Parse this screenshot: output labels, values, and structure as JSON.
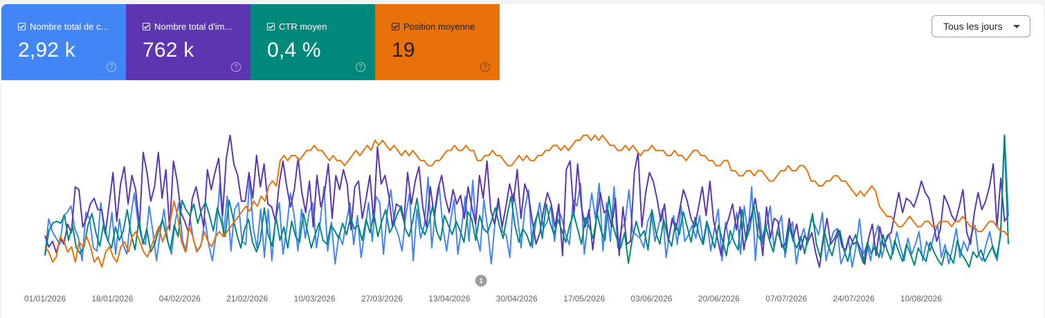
{
  "metrics": [
    {
      "label": "Nombre total de c...",
      "value": "2,92 k",
      "color": "#4285f4"
    },
    {
      "label": "Nombre total d'im...",
      "value": "762 k",
      "color": "#5e35b1"
    },
    {
      "label": "CTR moyen",
      "value": "0,4 %",
      "color": "#00897b"
    },
    {
      "label": "Position moyenne",
      "value": "19",
      "color": "#e8710a"
    }
  ],
  "help_icon": "question-circle-icon",
  "checkbox_icon": "checkbox-checked-icon",
  "period_select": {
    "selected": "Tous les jours",
    "icon": "caret-down-icon"
  },
  "chart_data": {
    "type": "line",
    "x_start": "01/01/2026",
    "x_end": "01/09/2026",
    "x_tick_labels": [
      "01/01/2026",
      "18/01/2026",
      "04/02/2026",
      "21/02/2026",
      "10/03/2026",
      "27/03/2026",
      "13/04/2026",
      "30/04/2026",
      "17/05/2026",
      "03/06/2026",
      "20/06/2026",
      "07/07/2026",
      "24/07/2026",
      "10/08/2026"
    ],
    "annotations": [
      {
        "label": "1",
        "date": "21/04/2026"
      }
    ],
    "grid": false,
    "legend": "metric tiles above chart",
    "series": [
      {
        "name": "Nombre total de c...",
        "color": "#4285f4",
        "values": [
          6,
          17,
          13,
          11,
          9,
          18,
          19,
          21,
          14,
          11,
          4,
          19,
          17,
          8,
          7,
          22,
          13,
          10,
          19,
          6,
          17,
          9,
          6,
          17,
          25,
          16,
          11,
          9,
          21,
          13,
          4,
          13,
          20,
          10,
          6,
          16,
          22,
          10,
          7,
          17,
          10,
          7,
          9,
          17,
          9,
          4,
          12,
          28,
          12,
          24,
          7,
          20,
          22,
          10,
          9,
          30,
          14,
          8,
          20,
          5,
          20,
          4,
          17,
          22,
          6,
          14,
          25,
          18,
          7,
          20,
          11,
          19,
          22,
          8,
          16,
          27,
          7,
          16,
          3,
          12,
          9,
          16,
          22,
          9,
          18,
          5,
          13,
          22,
          10,
          24,
          22,
          6,
          19,
          26,
          15,
          12,
          7,
          18,
          25,
          4,
          20,
          11,
          15,
          30,
          8,
          20,
          27,
          14,
          7,
          16,
          23,
          6,
          14,
          24,
          10,
          29,
          12,
          7,
          23,
          14,
          3,
          16,
          22,
          13,
          12,
          5,
          25,
          18,
          8,
          20,
          26,
          8,
          16,
          22,
          14,
          16,
          21,
          10,
          20,
          17,
          12,
          9,
          23,
          21,
          28,
          6,
          16,
          25,
          17,
          28,
          7,
          22,
          10,
          27,
          8,
          14,
          16,
          26,
          13,
          12,
          11,
          8,
          16,
          19,
          10,
          15,
          20,
          5,
          13,
          18,
          9,
          21,
          10,
          12,
          15,
          11,
          18,
          9,
          16,
          7,
          14,
          20,
          4,
          16,
          9,
          12,
          19,
          6,
          21,
          12,
          27,
          4,
          19,
          9,
          15,
          21,
          8,
          14,
          18,
          5,
          13,
          16,
          3,
          10,
          14,
          9,
          17,
          15,
          12,
          19,
          4,
          9,
          13,
          14,
          3,
          6,
          11,
          2,
          8,
          17,
          6,
          9,
          4,
          11,
          15,
          5,
          10,
          12,
          6,
          13,
          8,
          4,
          11,
          6,
          9,
          13,
          4,
          10,
          7,
          12,
          15,
          5,
          9,
          3,
          8,
          14,
          5,
          10,
          7,
          12,
          15,
          6,
          4,
          9,
          13,
          7,
          4,
          14,
          43,
          18
        ]
      },
      {
        "name": "Nombre total d'im...",
        "color": "#5e35b1",
        "values": [
          115,
          111,
          113,
          109,
          114,
          112,
          119,
          116,
          132,
          131,
          118,
          121,
          126,
          128,
          124,
          124,
          116,
          126,
          137,
          120,
          133,
          139,
          126,
          136,
          131,
          118,
          144,
          137,
          127,
          132,
          144,
          128,
          138,
          117,
          141,
          134,
          123,
          120,
          116,
          128,
          132,
          125,
          118,
          138,
          131,
          137,
          142,
          122,
          142,
          150,
          140,
          136,
          127,
          127,
          137,
          128,
          143,
          132,
          140,
          126,
          125,
          120,
          133,
          141,
          132,
          125,
          131,
          142,
          130,
          123,
          134,
          118,
          136,
          125,
          130,
          140,
          121,
          136,
          131,
          138,
          133,
          117,
          132,
          134,
          121,
          128,
          136,
          120,
          146,
          133,
          136,
          129,
          118,
          126,
          125,
          120,
          137,
          126,
          134,
          139,
          125,
          118,
          132,
          122,
          131,
          136,
          128,
          123,
          131,
          126,
          129,
          121,
          132,
          125,
          119,
          136,
          128,
          141,
          124,
          119,
          128,
          118,
          125,
          133,
          127,
          138,
          121,
          133,
          129,
          120,
          112,
          116,
          124,
          130,
          126,
          118,
          126,
          108,
          138,
          141,
          122,
          140,
          125,
          118,
          124,
          110,
          121,
          130,
          123,
          124,
          118,
          128,
          108,
          125,
          112,
          113,
          137,
          144,
          118,
          130,
          137,
          134,
          128,
          120,
          126,
          113,
          121,
          117,
          124,
          131,
          127,
          121,
          118,
          125,
          132,
          122,
          134,
          120,
          114,
          108,
          117,
          121,
          126,
          117,
          125,
          110,
          118,
          122,
          128,
          119,
          108,
          125,
          114,
          121,
          120,
          111,
          112,
          121,
          114,
          119,
          110,
          115,
          113,
          116,
          109,
          104,
          113,
          121,
          112,
          114,
          117,
          111,
          110,
          115,
          112,
          113,
          110,
          105,
          114,
          119,
          108,
          118,
          111,
          115,
          116,
          123,
          130,
          123,
          128,
          127,
          125,
          129,
          134,
          130,
          128,
          121,
          113,
          117,
          129,
          126,
          122,
          120,
          125,
          131,
          116,
          112,
          123,
          130,
          124,
          127,
          132,
          140,
          118,
          135,
          120,
          122
        ]
      },
      {
        "name": "CTR moyen",
        "color": "#00897b",
        "values": [
          0.25,
          0.38,
          0.42,
          0.43,
          0.42,
          0.46,
          0.33,
          0.41,
          0.29,
          0.26,
          0.3,
          0.41,
          0.47,
          0.37,
          0.3,
          0.42,
          0.33,
          0.29,
          0.4,
          0.33,
          0.38,
          0.49,
          0.36,
          0.28,
          0.44,
          0.31,
          0.39,
          0.27,
          0.31,
          0.38,
          0.44,
          0.35,
          0.28,
          0.41,
          0.35,
          0.54,
          0.49,
          0.46,
          0.52,
          0.42,
          0.49,
          0.53,
          0.46,
          0.38,
          0.5,
          0.43,
          0.35,
          0.54,
          0.45,
          0.36,
          0.29,
          0.39,
          0.44,
          0.32,
          0.27,
          0.33,
          0.5,
          0.36,
          0.3,
          0.45,
          0.33,
          0.4,
          0.29,
          0.43,
          0.35,
          0.32,
          0.47,
          0.38,
          0.29,
          0.36,
          0.42,
          0.33,
          0.31,
          0.41,
          0.38,
          0.34,
          0.42,
          0.36,
          0.45,
          0.39,
          0.41,
          0.33,
          0.44,
          0.37,
          0.47,
          0.35,
          0.43,
          0.49,
          0.37,
          0.41,
          0.47,
          0.51,
          0.39,
          0.35,
          0.44,
          0.55,
          0.4,
          0.36,
          0.42,
          0.51,
          0.38,
          0.33,
          0.46,
          0.41,
          0.36,
          0.43,
          0.38,
          0.32,
          0.48,
          0.44,
          0.33,
          0.46,
          0.39,
          0.37,
          0.43,
          0.5,
          0.41,
          0.34,
          0.46,
          0.56,
          0.41,
          0.32,
          0.39,
          0.36,
          0.3,
          0.42,
          0.48,
          0.34,
          0.52,
          0.42,
          0.36,
          0.44,
          0.38,
          0.32,
          0.41,
          0.47,
          0.39,
          0.31,
          0.45,
          0.4,
          0.34,
          0.47,
          0.38,
          0.33,
          0.56,
          0.41,
          0.34,
          0.29,
          0.37,
          0.21,
          0.34,
          0.43,
          0.35,
          0.38,
          0.28,
          0.49,
          0.37,
          0.31,
          0.44,
          0.35,
          0.3,
          0.42,
          0.36,
          0.48,
          0.4,
          0.32,
          0.45,
          0.36,
          0.31,
          0.43,
          0.36,
          0.29,
          0.41,
          0.33,
          0.25,
          0.38,
          0.32,
          0.28,
          0.49,
          0.33,
          0.39,
          0.52,
          0.36,
          0.32,
          0.41,
          0.33,
          0.27,
          0.38,
          0.32,
          0.27,
          0.41,
          0.33,
          0.29,
          0.35,
          0.26,
          0.37,
          0.47,
          0.31,
          0.24,
          0.38,
          0.3,
          0.25,
          0.34,
          0.38,
          0.28,
          0.22,
          0.31,
          0.36,
          0.27,
          0.21,
          0.32,
          0.26,
          0.3,
          0.24,
          0.36,
          0.28,
          0.23,
          0.33,
          0.27,
          0.22,
          0.31,
          0.26,
          0.2,
          0.29,
          0.25,
          0.22,
          0.32,
          0.27,
          0.23,
          0.2,
          0.28,
          0.25,
          0.21,
          0.33,
          0.26,
          0.23,
          0.19,
          0.27,
          0.24,
          0.28,
          0.22,
          0.26,
          0.3,
          0.24,
          0.35,
          0.88,
          0.31
        ]
      },
      {
        "name": "Position moyenne",
        "color": "#e8710a",
        "values": [
          25,
          24,
          22,
          23,
          27,
          26,
          24,
          25,
          22,
          26,
          25,
          27,
          25,
          22,
          23,
          21,
          24,
          25,
          23,
          22,
          25,
          26,
          24,
          27,
          28,
          26,
          24,
          23,
          25,
          27,
          29,
          26,
          28,
          30,
          34,
          31,
          26,
          24,
          29,
          27,
          24,
          25,
          28,
          26,
          25,
          27,
          28,
          27,
          28,
          29,
          30,
          31,
          32,
          33,
          32,
          34,
          33,
          35,
          34,
          37,
          38,
          37,
          42,
          43,
          42,
          43,
          43,
          42,
          43,
          44,
          44,
          45,
          44,
          44,
          43,
          42,
          43,
          42,
          42,
          41,
          42,
          43,
          44,
          43,
          44,
          45,
          44,
          46,
          45,
          46,
          45,
          44,
          45,
          44,
          43,
          44,
          43,
          44,
          43,
          42,
          42,
          41,
          41,
          42,
          42,
          43,
          44,
          44,
          45,
          44,
          44,
          45,
          44,
          44,
          42,
          42,
          43,
          43,
          44,
          43,
          43,
          42,
          41,
          41,
          42,
          43,
          42,
          43,
          42,
          42,
          43,
          43,
          44,
          44,
          45,
          45,
          44,
          45,
          44,
          45,
          46,
          46,
          47,
          47,
          46,
          47,
          46,
          47,
          46,
          45,
          45,
          44,
          44,
          45,
          44,
          45,
          44,
          43,
          44,
          44,
          45,
          44,
          44,
          44,
          43,
          43,
          44,
          43,
          43,
          42,
          43,
          44,
          44,
          43,
          43,
          42,
          42,
          41,
          41,
          42,
          42,
          40,
          40,
          39,
          39,
          40,
          40,
          39,
          40,
          40,
          39,
          38,
          38,
          39,
          40,
          40,
          41,
          40,
          40,
          41,
          41,
          40,
          38,
          38,
          37,
          37,
          38,
          38,
          39,
          39,
          38,
          38,
          37,
          36,
          35,
          36,
          35,
          36,
          37,
          36,
          33,
          32,
          31,
          31,
          30,
          29,
          29,
          30,
          31,
          30,
          29,
          29,
          30,
          30,
          29,
          29,
          30,
          30,
          30,
          29,
          30,
          30,
          31,
          30,
          29,
          29,
          28,
          28,
          29,
          30,
          30,
          29,
          28,
          28,
          27
        ]
      }
    ]
  }
}
